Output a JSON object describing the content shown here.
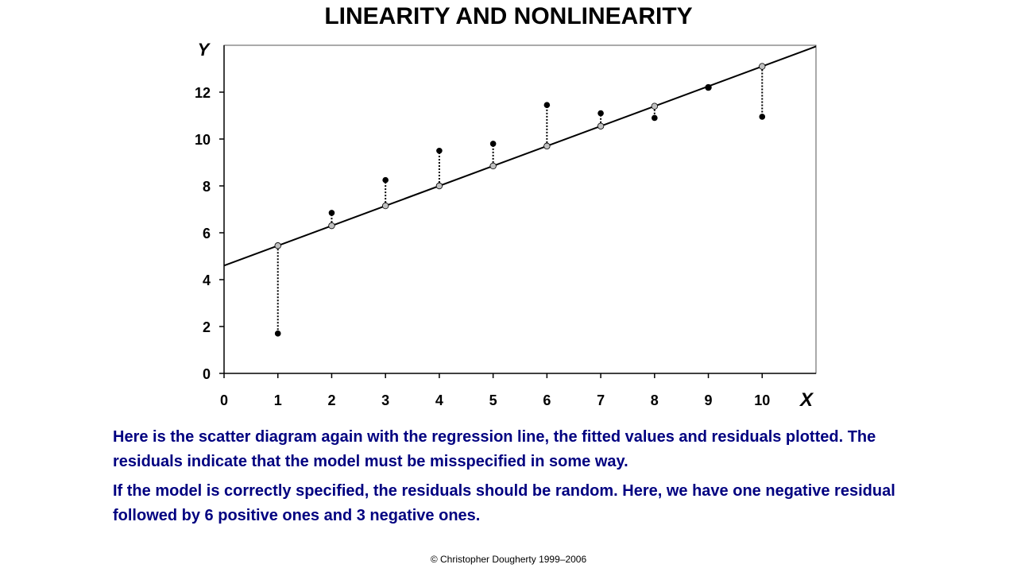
{
  "slide": {
    "title": "LINEARITY AND NONLINEARITY",
    "paragraph1": "Here is the scatter diagram again with the regression line, the fitted values and residuals plotted.  The residuals indicate that the model must be misspecified in some way.",
    "paragraph2": "If the model is correctly specified, the residuals should be random.  Here, we have one negative residual followed by 6 positive ones and 3 negative ones.",
    "copyright": "© Christopher Dougherty 1999–2006"
  },
  "chart_data": {
    "type": "scatter",
    "xlabel": "X",
    "ylabel": "Y",
    "xlim": [
      0,
      11
    ],
    "ylim": [
      0,
      14
    ],
    "x_ticks": [
      0,
      1,
      2,
      3,
      4,
      5,
      6,
      7,
      8,
      9,
      10
    ],
    "y_ticks": [
      0,
      2,
      4,
      6,
      8,
      10,
      12
    ],
    "grid": false,
    "series": [
      {
        "role": "observed",
        "x": [
          1,
          2,
          3,
          4,
          5,
          6,
          7,
          8,
          9,
          10
        ],
        "y": [
          1.7,
          6.85,
          8.25,
          9.5,
          9.8,
          11.45,
          11.1,
          10.9,
          12.2,
          10.95
        ]
      },
      {
        "role": "fitted",
        "x": [
          1,
          2,
          3,
          4,
          5,
          6,
          7,
          8,
          9,
          10
        ],
        "y": [
          5.45,
          6.3,
          7.15,
          8.0,
          8.85,
          9.7,
          10.55,
          11.4,
          12.2,
          13.1
        ]
      }
    ],
    "regression_line": {
      "intercept": 4.6,
      "slope": 0.85
    },
    "residual_lines": "dotted vertical segments from fitted to observed values",
    "colors": {
      "observed": "#000000",
      "fitted_fill": "#c0c0c0",
      "line": "#000000"
    }
  }
}
